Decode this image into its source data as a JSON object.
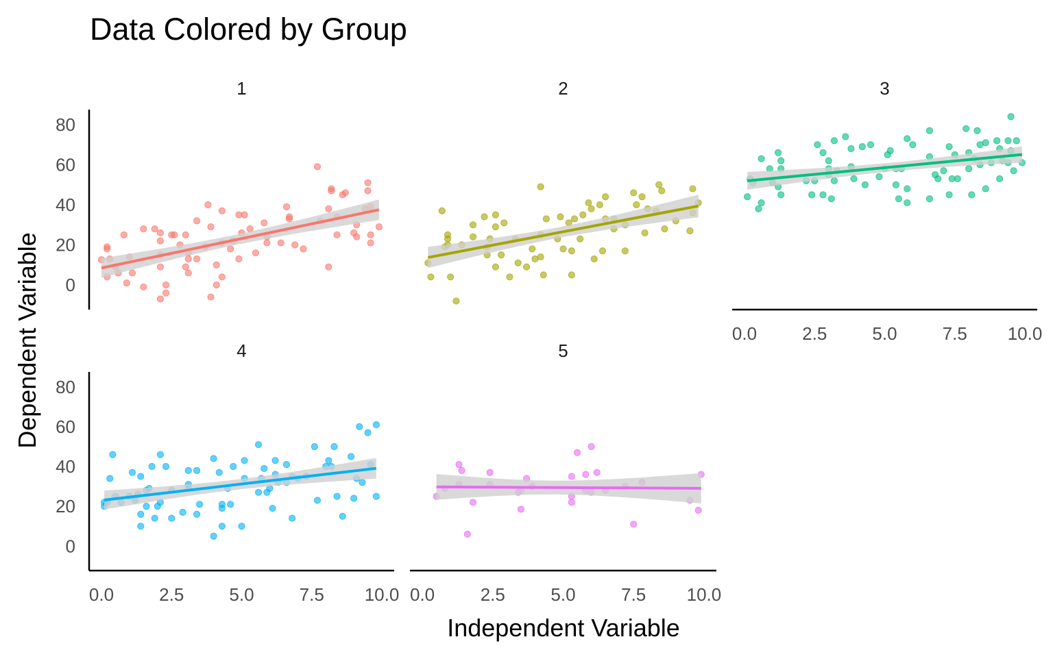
{
  "chart_data": {
    "type": "scatter",
    "title": "Data Colored by Group",
    "xlabel": "Independent Variable",
    "ylabel": "Dependent Variable",
    "xlim": [
      -0.44,
      10.44
    ],
    "ylim": [
      -12.3,
      87.5
    ],
    "x_ticks": [
      "0.0",
      "2.5",
      "5.0",
      "7.5",
      "10.0"
    ],
    "x_tick_values": [
      0,
      2.5,
      5,
      7.5,
      10
    ],
    "y_ticks": [
      "0",
      "20",
      "40",
      "60",
      "80"
    ],
    "y_tick_values": [
      0,
      20,
      40,
      60,
      80
    ],
    "grid": false,
    "legend": "none",
    "smoothing": "linear fit with confidence band",
    "band_color": "#d0d0d0",
    "facets": [
      {
        "label": "1",
        "color": "#F8766D",
        "points": [
          [
            0,
            12.6
          ],
          [
            0.2,
            18
          ],
          [
            0.2,
            19
          ],
          [
            0.2,
            4
          ],
          [
            0.3,
            13
          ],
          [
            0.5,
            9
          ],
          [
            0.6,
            6
          ],
          [
            0.8,
            25
          ],
          [
            0.9,
            1
          ],
          [
            1,
            14
          ],
          [
            1.1,
            6
          ],
          [
            1.5,
            28
          ],
          [
            1.5,
            -1
          ],
          [
            1.9,
            28
          ],
          [
            2.1,
            26
          ],
          [
            2.1,
            22
          ],
          [
            2.1,
            15
          ],
          [
            2.1,
            -7
          ],
          [
            2.1,
            9
          ],
          [
            2.3,
            0
          ],
          [
            2.3,
            -4
          ],
          [
            2.5,
            25
          ],
          [
            2.6,
            25
          ],
          [
            2.8,
            20
          ],
          [
            3,
            25
          ],
          [
            3,
            9
          ],
          [
            3.1,
            13
          ],
          [
            3.1,
            6
          ],
          [
            3.1,
            16
          ],
          [
            3.4,
            32
          ],
          [
            3.4,
            13
          ],
          [
            3.8,
            40
          ],
          [
            3.9,
            -6
          ],
          [
            3.9,
            29
          ],
          [
            3.7,
            19
          ],
          [
            4.1,
            10
          ],
          [
            4.1,
            0
          ],
          [
            4.3,
            4
          ],
          [
            4.3,
            21
          ],
          [
            4.3,
            37
          ],
          [
            4.6,
            18
          ],
          [
            4.7,
            22
          ],
          [
            4.9,
            13
          ],
          [
            4.9,
            35
          ],
          [
            5,
            26
          ],
          [
            5.1,
            35
          ],
          [
            5.3,
            28
          ],
          [
            5.5,
            16
          ],
          [
            5.8,
            31
          ],
          [
            5.9,
            21
          ],
          [
            5.9,
            24
          ],
          [
            6.4,
            21
          ],
          [
            6.6,
            39
          ],
          [
            6.7,
            34
          ],
          [
            6.7,
            33
          ],
          [
            6.9,
            20
          ],
          [
            7.2,
            18
          ],
          [
            7.7,
            59
          ],
          [
            7.8,
            32
          ],
          [
            8.1,
            9
          ],
          [
            8.1,
            38
          ],
          [
            8.2,
            47
          ],
          [
            8.2,
            48
          ],
          [
            8.4,
            34
          ],
          [
            8.4,
            25
          ],
          [
            8.6,
            45
          ],
          [
            8.7,
            46
          ],
          [
            9,
            26
          ],
          [
            9.1,
            24
          ],
          [
            9.1,
            30
          ],
          [
            9.4,
            38
          ],
          [
            9.5,
            51
          ],
          [
            9.5,
            47
          ],
          [
            9.6,
            25
          ],
          [
            9.6,
            21
          ],
          [
            9.6,
            39
          ],
          [
            9.9,
            29
          ]
        ]
      },
      {
        "label": "2",
        "color": "#A3A500",
        "points": [
          [
            0.2,
            11
          ],
          [
            0.3,
            4
          ],
          [
            0.7,
            37
          ],
          [
            0.8,
            19
          ],
          [
            0.9,
            20
          ],
          [
            0.9,
            25
          ],
          [
            0.9,
            23
          ],
          [
            1,
            4
          ],
          [
            1.2,
            -8
          ],
          [
            1.4,
            20
          ],
          [
            1.8,
            30
          ],
          [
            1.8,
            24
          ],
          [
            2.2,
            34
          ],
          [
            2.3,
            19
          ],
          [
            2.3,
            15
          ],
          [
            2.4,
            23
          ],
          [
            2.6,
            35
          ],
          [
            2.6,
            9
          ],
          [
            2.6,
            29
          ],
          [
            2.8,
            15
          ],
          [
            2.9,
            31
          ],
          [
            3.1,
            4
          ],
          [
            3.3,
            23
          ],
          [
            3.4,
            11
          ],
          [
            3.7,
            9
          ],
          [
            3.9,
            18
          ],
          [
            4,
            13
          ],
          [
            4.2,
            25
          ],
          [
            4.2,
            14
          ],
          [
            4.2,
            49
          ],
          [
            4.3,
            5
          ],
          [
            4.4,
            33
          ],
          [
            4.8,
            23
          ],
          [
            4.9,
            34
          ],
          [
            5,
            18
          ],
          [
            5.2,
            31
          ],
          [
            5.3,
            5
          ],
          [
            5.3,
            17
          ],
          [
            5.4,
            33
          ],
          [
            5.6,
            23
          ],
          [
            5.7,
            35
          ],
          [
            5.9,
            41
          ],
          [
            6,
            38
          ],
          [
            6.1,
            13
          ],
          [
            6.3,
            40
          ],
          [
            6.4,
            17
          ],
          [
            6.5,
            44
          ],
          [
            6.5,
            33
          ],
          [
            6.8,
            33
          ],
          [
            6.8,
            28
          ],
          [
            7.2,
            17
          ],
          [
            7.2,
            30
          ],
          [
            7.5,
            46
          ],
          [
            7.6,
            40
          ],
          [
            7.8,
            44
          ],
          [
            7.9,
            26
          ],
          [
            8,
            38
          ],
          [
            8.3,
            37
          ],
          [
            8.4,
            50
          ],
          [
            8.5,
            47
          ],
          [
            8.6,
            28
          ],
          [
            9,
            32
          ],
          [
            9.5,
            27
          ],
          [
            9.6,
            48
          ],
          [
            9.6,
            36
          ],
          [
            9.8,
            41
          ]
        ]
      },
      {
        "label": "3",
        "color": "#00BF7D",
        "points": [
          [
            0.1,
            44
          ],
          [
            0.2,
            53
          ],
          [
            0.3,
            51
          ],
          [
            0.5,
            38
          ],
          [
            0.6,
            41
          ],
          [
            0.6,
            63
          ],
          [
            0.9,
            58
          ],
          [
            1,
            51
          ],
          [
            1.2,
            49
          ],
          [
            1.2,
            66
          ],
          [
            1.3,
            62
          ],
          [
            1.3,
            45
          ],
          [
            1.3,
            58
          ],
          [
            2.2,
            52
          ],
          [
            2.4,
            45
          ],
          [
            2.5,
            52
          ],
          [
            2.6,
            70
          ],
          [
            2.8,
            66
          ],
          [
            2.8,
            45
          ],
          [
            3,
            62
          ],
          [
            3,
            58
          ],
          [
            3,
            55
          ],
          [
            3.1,
            43
          ],
          [
            3.2,
            72
          ],
          [
            3.2,
            52
          ],
          [
            3.3,
            57
          ],
          [
            3.6,
            74
          ],
          [
            3.8,
            68
          ],
          [
            3.8,
            59
          ],
          [
            3.9,
            53
          ],
          [
            4.2,
            69
          ],
          [
            4.3,
            50
          ],
          [
            4.5,
            70
          ],
          [
            4.8,
            54
          ],
          [
            5,
            58
          ],
          [
            5.1,
            65
          ],
          [
            5.2,
            67
          ],
          [
            5.4,
            58
          ],
          [
            5.4,
            50
          ],
          [
            5.5,
            43
          ],
          [
            5.6,
            58
          ],
          [
            5.8,
            73
          ],
          [
            5.8,
            41
          ],
          [
            6,
            70
          ],
          [
            5.8,
            48
          ],
          [
            6.6,
            64
          ],
          [
            6.6,
            77
          ],
          [
            6.6,
            43
          ],
          [
            6.8,
            55
          ],
          [
            6.9,
            53
          ],
          [
            7.1,
            57
          ],
          [
            7.3,
            69
          ],
          [
            7.3,
            45
          ],
          [
            7.4,
            53
          ],
          [
            7.5,
            65
          ],
          [
            7.6,
            53
          ],
          [
            7.9,
            78
          ],
          [
            8,
            66
          ],
          [
            8,
            58
          ],
          [
            8.1,
            45
          ],
          [
            8.2,
            63
          ],
          [
            8.3,
            77
          ],
          [
            8.4,
            70
          ],
          [
            8.4,
            60
          ],
          [
            8.6,
            71
          ],
          [
            8.6,
            48
          ],
          [
            8.8,
            61
          ],
          [
            9,
            72
          ],
          [
            9.1,
            53
          ],
          [
            9.1,
            68
          ],
          [
            9.2,
            62
          ],
          [
            9.4,
            72
          ],
          [
            9.4,
            61
          ],
          [
            9.5,
            84
          ],
          [
            9.5,
            67
          ],
          [
            9.6,
            57
          ],
          [
            9.7,
            72
          ],
          [
            9.9,
            61
          ]
        ]
      },
      {
        "label": "4",
        "color": "#00B0F6",
        "points": [
          [
            0.1,
            22
          ],
          [
            0.1,
            20
          ],
          [
            0.2,
            22
          ],
          [
            0.3,
            34
          ],
          [
            0.4,
            46
          ],
          [
            0.5,
            25
          ],
          [
            0.7,
            22
          ],
          [
            1,
            25
          ],
          [
            1.1,
            37
          ],
          [
            1.2,
            23
          ],
          [
            1.3,
            26
          ],
          [
            1.4,
            10
          ],
          [
            1.4,
            16
          ],
          [
            1.4,
            35
          ],
          [
            1.6,
            20
          ],
          [
            1.6,
            28
          ],
          [
            1.7,
            29
          ],
          [
            1.8,
            40
          ],
          [
            1.9,
            14
          ],
          [
            2,
            20
          ],
          [
            2.1,
            46
          ],
          [
            2.1,
            22
          ],
          [
            2.3,
            40
          ],
          [
            2.5,
            14
          ],
          [
            2.5,
            28
          ],
          [
            2.9,
            17
          ],
          [
            3.1,
            31
          ],
          [
            3.1,
            38
          ],
          [
            3.1,
            29
          ],
          [
            3.4,
            16
          ],
          [
            3.4,
            38
          ],
          [
            3.5,
            21
          ],
          [
            4,
            5
          ],
          [
            4,
            44
          ],
          [
            4.2,
            37
          ],
          [
            4.3,
            10
          ],
          [
            4.3,
            21
          ],
          [
            4.3,
            19
          ],
          [
            4.5,
            29
          ],
          [
            4.6,
            21
          ],
          [
            4.7,
            40
          ],
          [
            5,
            10
          ],
          [
            5.1,
            34
          ],
          [
            5.1,
            43
          ],
          [
            5.6,
            51
          ],
          [
            5.6,
            27
          ],
          [
            5.7,
            34
          ],
          [
            5.8,
            39
          ],
          [
            5.9,
            27
          ],
          [
            6,
            29
          ],
          [
            6.1,
            19
          ],
          [
            6.2,
            43
          ],
          [
            6.2,
            36
          ],
          [
            6.3,
            32
          ],
          [
            6.6,
            41
          ],
          [
            6.6,
            32
          ],
          [
            6.8,
            14
          ],
          [
            6.8,
            35
          ],
          [
            7,
            34
          ],
          [
            7.3,
            35
          ],
          [
            7.6,
            50
          ],
          [
            7.7,
            23
          ],
          [
            8,
            40
          ],
          [
            8.1,
            43
          ],
          [
            8.2,
            40
          ],
          [
            8.3,
            50
          ],
          [
            8.4,
            25
          ],
          [
            8.6,
            15
          ],
          [
            8.9,
            45
          ],
          [
            9,
            24
          ],
          [
            9.1,
            34
          ],
          [
            9.2,
            60
          ],
          [
            9.3,
            32
          ],
          [
            9.5,
            57
          ],
          [
            9.6,
            41
          ],
          [
            9.8,
            25
          ],
          [
            9.8,
            61
          ]
        ]
      },
      {
        "label": "5",
        "color": "#E76BF3",
        "points": [
          [
            0.5,
            25
          ],
          [
            0.8,
            29
          ],
          [
            1.3,
            41
          ],
          [
            1.4,
            38
          ],
          [
            1.3,
            31
          ],
          [
            1.6,
            6
          ],
          [
            1.8,
            22
          ],
          [
            2.4,
            31
          ],
          [
            2.4,
            37
          ],
          [
            3.4,
            27
          ],
          [
            3.5,
            28
          ],
          [
            3.5,
            18.5
          ],
          [
            3.7,
            34
          ],
          [
            3.9,
            30
          ],
          [
            5.3,
            35
          ],
          [
            5.3,
            25
          ],
          [
            5.3,
            22
          ],
          [
            5.5,
            47
          ],
          [
            5.8,
            36
          ],
          [
            6,
            50
          ],
          [
            5.8,
            28
          ],
          [
            6,
            27
          ],
          [
            6.2,
            37
          ],
          [
            6.5,
            28
          ],
          [
            7.2,
            30
          ],
          [
            7.5,
            11
          ],
          [
            7.8,
            32
          ],
          [
            9.5,
            23
          ],
          [
            9.8,
            18
          ],
          [
            9.9,
            36
          ]
        ]
      }
    ]
  }
}
